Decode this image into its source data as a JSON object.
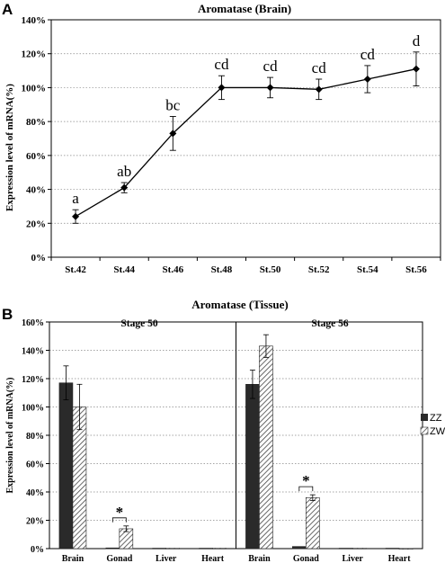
{
  "panel_a_letter": "A",
  "panel_b_letter": "B",
  "chart_data": [
    {
      "type": "line",
      "title": "Aromatase (Brain)",
      "ylabel": "Expression level of mRNA(%)",
      "xlabel": "",
      "categories": [
        "St.42",
        "St.44",
        "St.46",
        "St.48",
        "St.50",
        "St.52",
        "St.54",
        "St.56"
      ],
      "values": [
        24,
        41,
        73,
        100,
        100,
        99,
        105,
        111
      ],
      "errors": [
        4,
        3,
        10,
        7,
        6,
        6,
        8,
        10
      ],
      "significance": [
        "a",
        "ab",
        "bc",
        "cd",
        "cd",
        "cd",
        "cd",
        "d"
      ],
      "ylim": [
        0,
        140
      ],
      "yticks": [
        "0%",
        "20%",
        "40%",
        "60%",
        "80%",
        "100%",
        "120%",
        "140%"
      ],
      "grid": true,
      "color": "#000000"
    },
    {
      "type": "bar",
      "title": "Aromatase (Tissue)",
      "ylabel": "Expression level of mRNA(%)",
      "xlabel": "",
      "ylim": [
        0,
        160
      ],
      "yticks": [
        "0%",
        "20%",
        "40%",
        "60%",
        "80%",
        "100%",
        "120%",
        "140%",
        "160%"
      ],
      "grid": true,
      "legend_position": "right",
      "legend": [
        {
          "name": "ZZ",
          "pattern": "solid",
          "color": "#2a2a2a"
        },
        {
          "name": "ZW",
          "pattern": "hatched",
          "color": "#555555"
        }
      ],
      "groups": [
        {
          "name": "Stage 50",
          "categories": [
            "Brain",
            "Gonad",
            "Liver",
            "Heart"
          ],
          "series": [
            {
              "name": "ZZ",
              "values": [
                117,
                0.5,
                0.3,
                0.3
              ],
              "errors": [
                12,
                0,
                0,
                0
              ]
            },
            {
              "name": "ZW",
              "values": [
                100,
                14,
                0.3,
                0.3
              ],
              "errors": [
                16,
                2,
                0,
                0
              ]
            }
          ],
          "significance_marker": {
            "category": "Gonad",
            "label": "*"
          }
        },
        {
          "name": "Stage 56",
          "categories": [
            "Brain",
            "Gonad",
            "Liver",
            "Heart"
          ],
          "series": [
            {
              "name": "ZZ",
              "values": [
                116,
                1.5,
                0.3,
                0.3
              ],
              "errors": [
                10,
                0,
                0,
                0
              ]
            },
            {
              "name": "ZW",
              "values": [
                143,
                36,
                0.3,
                0.1
              ],
              "errors": [
                8,
                2,
                0,
                0
              ]
            }
          ],
          "significance_marker": {
            "category": "Gonad",
            "label": "*"
          }
        }
      ]
    }
  ]
}
